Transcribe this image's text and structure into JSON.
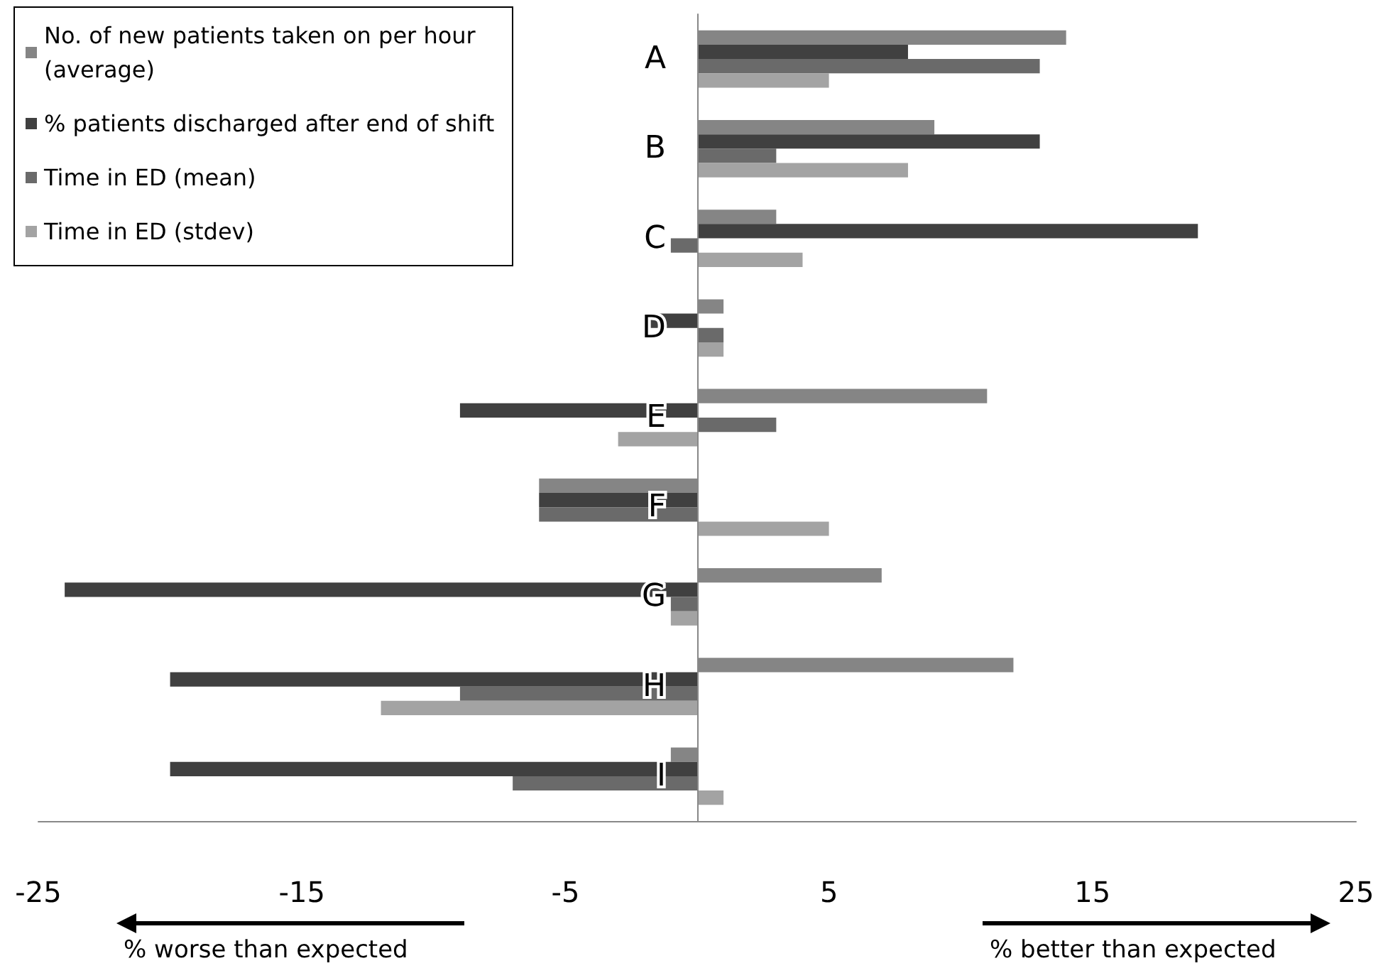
{
  "chart_data": {
    "type": "bar",
    "orientation": "horizontal",
    "categories": [
      "A",
      "B",
      "C",
      "D",
      "E",
      "F",
      "G",
      "H",
      "I"
    ],
    "series": [
      {
        "name": "No. of new patients taken on per hour (average)",
        "color": "#858585",
        "values": [
          14,
          9,
          3,
          1,
          11,
          -6,
          7,
          12,
          -1
        ]
      },
      {
        "name": "% patients discharged after end of shift",
        "color": "#404040",
        "values": [
          8,
          13,
          19,
          -2,
          -9,
          -6,
          -24,
          -20,
          -20
        ]
      },
      {
        "name": "Time in ED (mean)",
        "color": "#6a6a6a",
        "values": [
          13,
          3,
          -1,
          1,
          3,
          -6,
          -1,
          -9,
          -7
        ]
      },
      {
        "name": "Time in ED (stdev)",
        "color": "#a3a3a3",
        "values": [
          5,
          8,
          4,
          1,
          -3,
          5,
          -1,
          -12,
          1
        ]
      }
    ],
    "xlim": [
      -25,
      25
    ],
    "xticks": [
      -25,
      -15,
      -5,
      5,
      15,
      25
    ],
    "grid": false,
    "legend": "top left",
    "annotations": [
      "% worse than expected",
      "% better than expected"
    ]
  }
}
